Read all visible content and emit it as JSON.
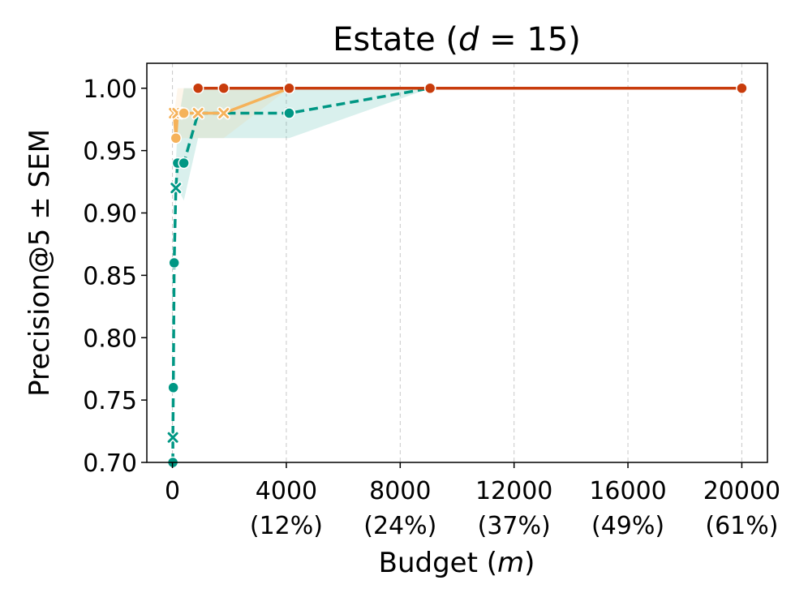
{
  "chart_data": {
    "type": "line",
    "title": {
      "prefix": "Estate (",
      "var": "d",
      "rest": " = 15)"
    },
    "xlabel": {
      "prefix": "Budget (",
      "var": "m",
      "suffix": ")"
    },
    "ylabel": "Precision@5 ± SEM",
    "xlim": [
      -900,
      20900
    ],
    "ylim": [
      0.7,
      1.02
    ],
    "x_ticks": [
      {
        "value": 0,
        "label": "0",
        "sublabel": ""
      },
      {
        "value": 4000,
        "label": "4000",
        "sublabel": "(12%)"
      },
      {
        "value": 8000,
        "label": "8000",
        "sublabel": "(24%)"
      },
      {
        "value": 12000,
        "label": "12000",
        "sublabel": "(37%)"
      },
      {
        "value": 16000,
        "label": "16000",
        "sublabel": "(49%)"
      },
      {
        "value": 20000,
        "label": "20000",
        "sublabel": "(61%)"
      }
    ],
    "y_ticks": [
      {
        "value": 0.7,
        "label": "0.70"
      },
      {
        "value": 0.75,
        "label": "0.75"
      },
      {
        "value": 0.8,
        "label": "0.80"
      },
      {
        "value": 0.85,
        "label": "0.85"
      },
      {
        "value": 0.9,
        "label": "0.90"
      },
      {
        "value": 0.95,
        "label": "0.95"
      },
      {
        "value": 1.0,
        "label": "1.00"
      }
    ],
    "grid": "x-only dashed",
    "series": [
      {
        "color": "#009784",
        "style": "dashed",
        "fill": "#009784",
        "points": [
          {
            "x": 15,
            "y": 0.7,
            "marker": "circle"
          },
          {
            "x": 15,
            "y": 0.72,
            "marker": "x"
          },
          {
            "x": 30,
            "y": 0.76,
            "marker": "circle"
          },
          {
            "x": 60,
            "y": 0.86,
            "marker": "circle"
          },
          {
            "x": 120,
            "y": 0.92,
            "marker": "x"
          },
          {
            "x": 180,
            "y": 0.94,
            "marker": "circle"
          },
          {
            "x": 400,
            "y": 0.94,
            "marker": "circle"
          },
          {
            "x": 900,
            "y": 0.98,
            "marker": "x"
          },
          {
            "x": 1800,
            "y": 0.98,
            "marker": "x"
          },
          {
            "x": 4100,
            "y": 0.98,
            "marker": "circle"
          },
          {
            "x": 9050,
            "y": 1.0,
            "marker": "circle"
          }
        ],
        "band": [
          {
            "x": 60,
            "lo": 0.86,
            "hi": 0.86
          },
          {
            "x": 120,
            "lo": 0.91,
            "hi": 0.94
          },
          {
            "x": 180,
            "lo": 0.92,
            "hi": 0.97
          },
          {
            "x": 400,
            "lo": 0.91,
            "hi": 1.0
          },
          {
            "x": 900,
            "lo": 0.96,
            "hi": 1.0
          },
          {
            "x": 1800,
            "lo": 0.96,
            "hi": 1.0
          },
          {
            "x": 4100,
            "lo": 0.96,
            "hi": 1.0
          },
          {
            "x": 9050,
            "lo": 1.0,
            "hi": 1.0
          }
        ]
      },
      {
        "color": "#f5b25a",
        "style": "solid",
        "fill": "#f5c07a",
        "points": [
          {
            "x": 60,
            "y": 0.98,
            "marker": "x"
          },
          {
            "x": 120,
            "y": 0.96,
            "marker": "circle"
          },
          {
            "x": 180,
            "y": 0.98,
            "marker": "x"
          },
          {
            "x": 400,
            "y": 0.98,
            "marker": "circle"
          },
          {
            "x": 900,
            "y": 0.98,
            "marker": "x"
          },
          {
            "x": 1800,
            "y": 0.98,
            "marker": "x"
          },
          {
            "x": 4100,
            "y": 1.0,
            "marker": "circle"
          }
        ],
        "band": [
          {
            "x": 60,
            "lo": 0.98,
            "hi": 0.98
          },
          {
            "x": 180,
            "lo": 0.96,
            "hi": 1.0
          },
          {
            "x": 400,
            "lo": 0.96,
            "hi": 1.0
          },
          {
            "x": 900,
            "lo": 0.96,
            "hi": 1.0
          },
          {
            "x": 1800,
            "lo": 0.96,
            "hi": 1.0
          },
          {
            "x": 4100,
            "lo": 1.0,
            "hi": 1.0
          }
        ]
      },
      {
        "color": "#c83c0c",
        "style": "solid",
        "fill": "",
        "points": [
          {
            "x": 900,
            "y": 1.0,
            "marker": "circle"
          },
          {
            "x": 1800,
            "y": 1.0,
            "marker": "circle"
          },
          {
            "x": 4100,
            "y": 1.0,
            "marker": "circle"
          },
          {
            "x": 9050,
            "y": 1.0,
            "marker": "circle"
          },
          {
            "x": 20000,
            "y": 1.0,
            "marker": "circle"
          }
        ],
        "band": []
      }
    ]
  }
}
